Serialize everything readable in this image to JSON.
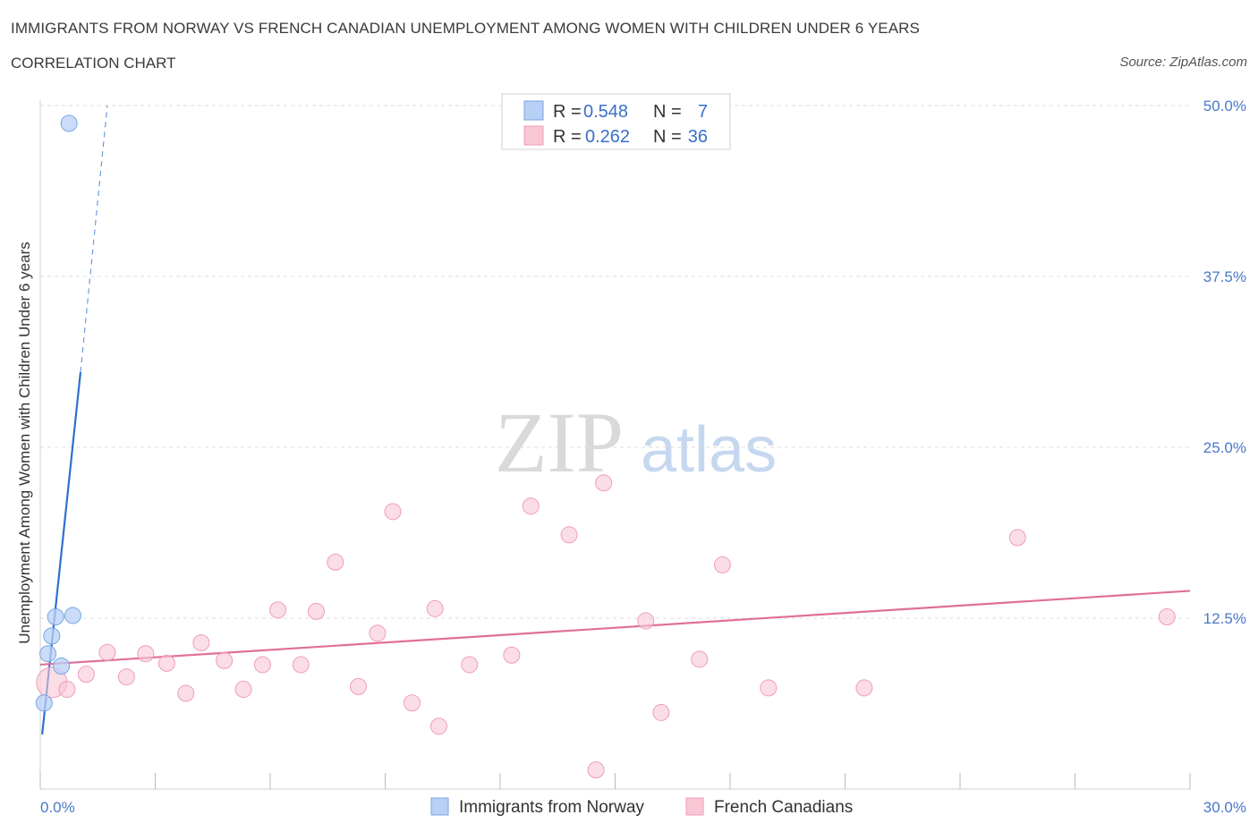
{
  "title": "IMMIGRANTS FROM NORWAY VS FRENCH CANADIAN UNEMPLOYMENT AMONG WOMEN WITH CHILDREN UNDER 6 YEARS",
  "subtitle": "CORRELATION CHART",
  "source": "Source: ZipAtlas.com",
  "watermark": {
    "zip": "ZIP",
    "atlas": "atlas"
  },
  "colors": {
    "norway_fill": "#b8d0f5",
    "norway_stroke": "#7aa5e0",
    "norway_line": "#2f6fd0",
    "french_fill": "#f9c6d6",
    "french_stroke": "#ef9db8",
    "french_line": "#e07098",
    "axis_text": "#4a78c8",
    "grid": "#dddddd"
  },
  "legend": {
    "rows": [
      {
        "r_label": "R =",
        "r_value": "0.548",
        "n_label": "N =",
        "n_value": "7"
      },
      {
        "r_label": "R =",
        "r_value": "0.262",
        "n_label": "N =",
        "n_value": "36"
      }
    ]
  },
  "chart_data": {
    "type": "scatter",
    "title": "IMMIGRANTS FROM NORWAY VS FRENCH CANADIAN UNEMPLOYMENT AMONG WOMEN WITH CHILDREN UNDER 6 YEARS",
    "xlabel": "",
    "ylabel": "Unemployment Among Women with Children Under 6 years",
    "xlim": [
      0,
      30
    ],
    "ylim": [
      0,
      50
    ],
    "x_tick_labels": [
      "0.0%",
      "30.0%"
    ],
    "y_ticks": [
      12.5,
      25.0,
      37.5,
      50.0
    ],
    "y_tick_labels": [
      "12.5%",
      "25.0%",
      "37.5%",
      "50.0%"
    ],
    "grid": true,
    "legend_position": "bottom",
    "series": [
      {
        "name": "Immigrants from Norway",
        "points": [
          [
            0.75,
            48.7
          ],
          [
            0.85,
            12.7
          ],
          [
            0.4,
            12.6
          ],
          [
            0.3,
            11.2
          ],
          [
            0.2,
            9.9
          ],
          [
            0.55,
            9.0
          ],
          [
            0.1,
            6.3
          ]
        ],
        "trend": {
          "x0": 0.05,
          "y0": 4.0,
          "x1": 1.05,
          "y1": 30.5,
          "dashed_to_x": 1.75,
          "dashed_to_y": 50.0
        }
      },
      {
        "name": "French Canadians",
        "points": [
          [
            0.3,
            7.8
          ],
          [
            0.7,
            7.3
          ],
          [
            1.2,
            8.4
          ],
          [
            1.75,
            10.0
          ],
          [
            2.25,
            8.2
          ],
          [
            2.75,
            9.9
          ],
          [
            3.3,
            9.2
          ],
          [
            3.8,
            7.0
          ],
          [
            4.2,
            10.7
          ],
          [
            4.8,
            9.4
          ],
          [
            5.3,
            7.3
          ],
          [
            5.8,
            9.1
          ],
          [
            6.2,
            13.1
          ],
          [
            6.8,
            9.1
          ],
          [
            7.2,
            13.0
          ],
          [
            7.7,
            16.6
          ],
          [
            8.3,
            7.5
          ],
          [
            8.8,
            11.4
          ],
          [
            9.2,
            20.3
          ],
          [
            9.7,
            6.3
          ],
          [
            10.3,
            13.2
          ],
          [
            10.4,
            4.6
          ],
          [
            11.2,
            9.1
          ],
          [
            12.3,
            9.8
          ],
          [
            12.8,
            20.7
          ],
          [
            13.8,
            18.6
          ],
          [
            14.5,
            1.4
          ],
          [
            14.7,
            22.4
          ],
          [
            15.8,
            12.3
          ],
          [
            16.2,
            5.6
          ],
          [
            17.2,
            9.5
          ],
          [
            17.8,
            16.4
          ],
          [
            19.0,
            7.4
          ],
          [
            21.5,
            7.4
          ],
          [
            25.5,
            18.4
          ],
          [
            29.4,
            12.6
          ]
        ],
        "trend": {
          "x0": 0,
          "y0": 9.1,
          "x1": 30,
          "y1": 14.5
        }
      }
    ]
  }
}
